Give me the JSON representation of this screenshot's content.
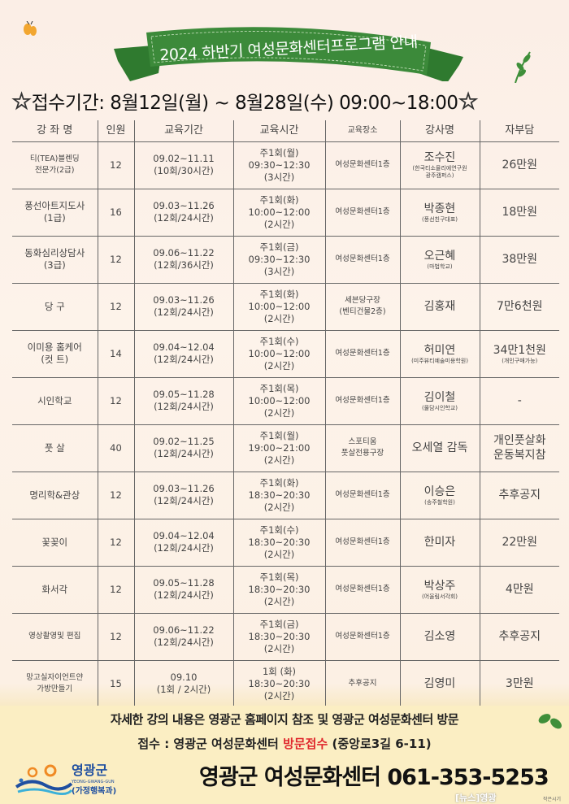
{
  "header": {
    "title": "2024 하반기  여성문화센터프로그램 안내",
    "period": "접수기간: 8월12일(월) ~ 8월28일(수)   09:00~18:00",
    "star": "☆"
  },
  "table": {
    "headers": [
      "강 좌 명",
      "인원",
      "교육기간",
      "교육시간",
      "교육장소",
      "강사명",
      "자부담"
    ],
    "rows": [
      {
        "name": [
          "티(TEA)블렌딩",
          "전문가(2급)"
        ],
        "count": "12",
        "period": [
          "09.02~11.11",
          "(10회/30시간)"
        ],
        "time": [
          "주1회(월)",
          "09:30~12:30",
          "(3시간)"
        ],
        "place": [
          "여성문화센터1층"
        ],
        "instructor": "조수진",
        "affiliation": [
          "(한국티소믈리에연구원",
          "광주캠퍼스)"
        ],
        "fee": "26만원",
        "fee_note": ""
      },
      {
        "name": [
          "풍선아트지도사",
          "(1급)"
        ],
        "count": "16",
        "period": [
          "09.03~11.26",
          "(12회/24시간)"
        ],
        "time": [
          "주1회(화)",
          "10:00~12:00",
          "(2시간)"
        ],
        "place": [
          "여성문화센터1층"
        ],
        "instructor": "박종현",
        "affiliation": [
          "(풍선친구대표)"
        ],
        "fee": "18만원",
        "fee_note": ""
      },
      {
        "name": [
          "동화심리상담사",
          "(3급)"
        ],
        "count": "12",
        "period": [
          "09.06~11.22",
          "(12회/36시간)"
        ],
        "time": [
          "주1회(금)",
          "09:30~12:30",
          "(3시간)"
        ],
        "place": [
          "여성문화센터1층"
        ],
        "instructor": "오근혜",
        "affiliation": [
          "(마법학교)"
        ],
        "fee": "38만원",
        "fee_note": ""
      },
      {
        "name": [
          "당    구"
        ],
        "count": "12",
        "period": [
          "09.03~11.26",
          "(12회/24시간)"
        ],
        "time": [
          "주1회(화)",
          "10:00~12:00",
          "(2시간)"
        ],
        "place": [
          "세븐당구장",
          "(벤티건물2층)"
        ],
        "instructor": "김홍재",
        "affiliation": [],
        "fee": "7만6천원",
        "fee_note": ""
      },
      {
        "name": [
          "이미용 홈케어",
          "(컷 트)"
        ],
        "count": "14",
        "period": [
          "09.04~12.04",
          "(12회/24시간)"
        ],
        "time": [
          "주1회(수)",
          "10:00~12:00",
          "(2시간)"
        ],
        "place": [
          "여성문화센터1층"
        ],
        "instructor": "허미연",
        "affiliation": [
          "(미주뷰티예술미용학원)"
        ],
        "fee": "34만1천원",
        "fee_note": "(개인구매가능)"
      },
      {
        "name": [
          "시인학교"
        ],
        "count": "12",
        "period": [
          "09.05~11.28",
          "(12회/24시간)"
        ],
        "time": [
          "주1회(목)",
          "10:00~12:00",
          "(2시간)"
        ],
        "place": [
          "여성문화센터1층"
        ],
        "instructor": "김이철",
        "affiliation": [
          "(물담시인학교)"
        ],
        "fee": "-",
        "fee_note": ""
      },
      {
        "name": [
          "풋    살"
        ],
        "count": "40",
        "period": [
          "09.02~11.25",
          "(12회/24시간)"
        ],
        "time": [
          "주1회(월)",
          "19:00~21:00",
          "(2시간)"
        ],
        "place": [
          "스포티움",
          "풋살전용구장"
        ],
        "instructor": "오세열 감독",
        "affiliation": [],
        "fee": "개인풋살화",
        "fee_note": "운동복지참"
      },
      {
        "name": [
          "명리학&관상"
        ],
        "count": "12",
        "period": [
          "09.03~11.26",
          "(12회/24시간)"
        ],
        "time": [
          "주1회(화)",
          "18:30~20:30",
          "(2시간)"
        ],
        "place": [
          "여성문화센터1층"
        ],
        "instructor": "이승은",
        "affiliation": [
          "(송주철학원)"
        ],
        "fee": "추후공지",
        "fee_note": ""
      },
      {
        "name": [
          "꽃꽂이"
        ],
        "count": "12",
        "period": [
          "09.04~12.04",
          "(12회/24시간)"
        ],
        "time": [
          "주1회(수)",
          "18:30~20:30",
          "(2시간)"
        ],
        "place": [
          "여성문화센터1층"
        ],
        "instructor": "한미자",
        "affiliation": [],
        "fee": "22만원",
        "fee_note": ""
      },
      {
        "name": [
          "화서각"
        ],
        "count": "12",
        "period": [
          "09.05~11.28",
          "(12회/24시간)"
        ],
        "time": [
          "주1회(목)",
          "18:30~20:30",
          "(2시간)"
        ],
        "place": [
          "여성문화센터1층"
        ],
        "instructor": "박상주",
        "affiliation": [
          "(어울림서각회)"
        ],
        "fee": "4만원",
        "fee_note": ""
      },
      {
        "name": [
          "영상촬영및 편집"
        ],
        "count": "12",
        "period": [
          "09.06~11.22",
          "(12회/24시간)"
        ],
        "time": [
          "주1회(금)",
          "18:30~20:30",
          "(2시간)"
        ],
        "place": [
          "여성문화센터1층"
        ],
        "instructor": "김소영",
        "affiliation": [],
        "fee": "추후공지",
        "fee_note": ""
      },
      {
        "name": [
          "망고실자이언트얀",
          "가방만들기"
        ],
        "count": "15",
        "period": [
          "09.10",
          "(1회 / 2시간)"
        ],
        "time": [
          "1회 (화)",
          "18:30~20:30",
          "(2시간)"
        ],
        "place": [
          "추후공지"
        ],
        "instructor": "김영미",
        "affiliation": [],
        "fee": "3만원",
        "fee_note": ""
      }
    ]
  },
  "footer": {
    "info": "자세한 강의 내용은 영광군 홈페이지 참조 및 영광군 여성문화센터 방문",
    "reception_label": "접수 : 영광군 여성문화센터 ",
    "reception_method": "방문접수",
    "address": "   (중앙로3길 6-11)",
    "contact": "영광군 여성문화센터   061-353-5253",
    "logo_name": "영광군",
    "logo_en": "YEONG-GWANG-GUN",
    "logo_sub": "(가정행복과)",
    "watermark": "[뉴스]영광",
    "credit": "작은시기"
  },
  "colors": {
    "banner": "#3c8a3a",
    "accent_red": "#e0282d",
    "star": "#f5e51a"
  }
}
